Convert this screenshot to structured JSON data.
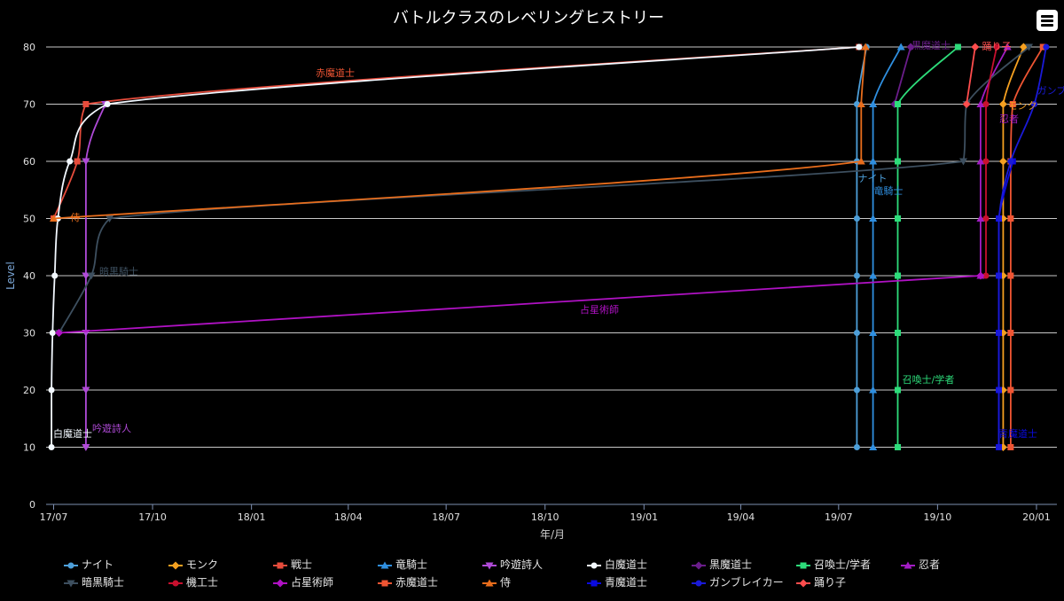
{
  "chart_data": {
    "type": "line",
    "title": "バトルクラスのレベリングヒストリー",
    "xlabel": "年/月",
    "ylabel": "Level",
    "ylim": [
      0,
      80
    ],
    "xlim": [
      "2017-06-24",
      "2020-01-20"
    ],
    "yticks": [
      "0",
      "10",
      "20",
      "30",
      "40",
      "50",
      "60",
      "70",
      "80"
    ],
    "xticks": [
      {
        "label": "17/07",
        "date": "2017-07-01"
      },
      {
        "label": "17/10",
        "date": "2017-10-01"
      },
      {
        "label": "18/01",
        "date": "2018-01-01"
      },
      {
        "label": "18/04",
        "date": "2018-04-01"
      },
      {
        "label": "18/07",
        "date": "2018-07-01"
      },
      {
        "label": "18/10",
        "date": "2018-10-01"
      },
      {
        "label": "19/01",
        "date": "2019-01-01"
      },
      {
        "label": "19/04",
        "date": "2019-04-01"
      },
      {
        "label": "19/07",
        "date": "2019-07-01"
      },
      {
        "label": "19/10",
        "date": "2019-10-01"
      },
      {
        "label": "20/01",
        "date": "2020-01-01"
      }
    ],
    "grid": true,
    "legend_position": "bottom",
    "series": [
      {
        "name": "ナイト",
        "color": "#4d9fd9",
        "marker": "circle",
        "label": "ナイト",
        "points": [
          [
            "2019-07-18",
            10
          ],
          [
            "2019-07-18",
            20
          ],
          [
            "2019-07-18",
            30
          ],
          [
            "2019-07-18",
            40
          ],
          [
            "2019-07-18",
            50
          ],
          [
            "2019-07-18",
            60
          ],
          [
            "2019-07-18",
            70
          ],
          [
            "2019-07-27",
            80
          ]
        ]
      },
      {
        "name": "モンク",
        "color": "#f5a020",
        "marker": "diamond",
        "label": "モンク",
        "points": [
          [
            "2019-12-01",
            10
          ],
          [
            "2019-12-01",
            20
          ],
          [
            "2019-12-01",
            30
          ],
          [
            "2019-12-01",
            40
          ],
          [
            "2019-12-01",
            50
          ],
          [
            "2019-12-01",
            60
          ],
          [
            "2019-12-01",
            70
          ],
          [
            "2019-12-20",
            80
          ]
        ]
      },
      {
        "name": "戦士",
        "color": "#e64c3c",
        "marker": "square",
        "label": "戦士",
        "points": [
          [
            "2017-07-01",
            50
          ],
          [
            "2017-07-23",
            60
          ],
          [
            "2017-07-31",
            70
          ],
          [
            "2019-07-20",
            80
          ]
        ]
      },
      {
        "name": "竜騎士",
        "color": "#2f8fe0",
        "marker": "triangle-up",
        "label": "竜騎士",
        "points": [
          [
            "2019-08-02",
            10
          ],
          [
            "2019-08-02",
            20
          ],
          [
            "2019-08-02",
            30
          ],
          [
            "2019-08-02",
            40
          ],
          [
            "2019-08-02",
            50
          ],
          [
            "2019-08-02",
            60
          ],
          [
            "2019-08-02",
            70
          ],
          [
            "2019-08-28",
            80
          ]
        ]
      },
      {
        "name": "吟遊詩人",
        "color": "#b04ad8",
        "marker": "triangle-down",
        "label": "吟遊詩人",
        "points": [
          [
            "2017-07-31",
            10
          ],
          [
            "2017-07-31",
            20
          ],
          [
            "2017-07-31",
            30
          ],
          [
            "2017-07-31",
            40
          ],
          [
            "2017-07-31",
            60
          ],
          [
            "2017-08-18",
            70
          ]
        ]
      },
      {
        "name": "白魔道士",
        "color": "#f2f8ff",
        "marker": "circle",
        "label": "白魔道士",
        "points": [
          [
            "2017-06-29",
            10
          ],
          [
            "2017-06-29",
            20
          ],
          [
            "2017-06-30",
            30
          ],
          [
            "2017-07-02",
            40
          ],
          [
            "2017-07-05",
            50
          ],
          [
            "2017-07-16",
            60
          ],
          [
            "2017-08-20",
            70
          ],
          [
            "2019-07-20",
            80
          ]
        ]
      },
      {
        "name": "黒魔道士",
        "color": "#6a1d8a",
        "marker": "diamond",
        "label": "黒魔道士",
        "points": [
          [
            "2019-08-22",
            70
          ],
          [
            "2019-09-06",
            80
          ]
        ]
      },
      {
        "name": "召喚士/学者",
        "color": "#2ddc7a",
        "marker": "square",
        "label": "召喚士/学者",
        "points": [
          [
            "2019-08-25",
            10
          ],
          [
            "2019-08-25",
            20
          ],
          [
            "2019-08-25",
            30
          ],
          [
            "2019-08-25",
            40
          ],
          [
            "2019-08-25",
            50
          ],
          [
            "2019-08-25",
            60
          ],
          [
            "2019-08-25",
            70
          ],
          [
            "2019-10-20",
            80
          ]
        ]
      },
      {
        "name": "忍者",
        "color": "#a21cc4",
        "marker": "triangle-up",
        "label": "忍者",
        "points": [
          [
            "2019-11-10",
            40
          ],
          [
            "2019-11-10",
            50
          ],
          [
            "2019-11-10",
            60
          ],
          [
            "2019-11-10",
            70
          ],
          [
            "2019-12-05",
            80
          ]
        ]
      },
      {
        "name": "暗黒騎士",
        "color": "#3d4f5f",
        "marker": "triangle-down",
        "label": "暗黒騎士",
        "points": [
          [
            "2017-07-06",
            30
          ],
          [
            "2017-08-05",
            40
          ],
          [
            "2017-08-22",
            50
          ],
          [
            "2019-10-25",
            60
          ],
          [
            "2019-10-28",
            70
          ],
          [
            "2019-12-25",
            80
          ]
        ]
      },
      {
        "name": "機工士",
        "color": "#c8102e",
        "marker": "circle",
        "label": "",
        "points": [
          [
            "2019-11-15",
            40
          ],
          [
            "2019-11-15",
            50
          ],
          [
            "2019-11-15",
            60
          ],
          [
            "2019-11-15",
            70
          ],
          [
            "2019-11-25",
            80
          ]
        ]
      },
      {
        "name": "占星術師",
        "color": "#b012c4",
        "marker": "diamond",
        "label": "占星術師",
        "points": [
          [
            "2017-07-06",
            30
          ],
          [
            "2019-11-10",
            40
          ]
        ]
      },
      {
        "name": "赤魔道士",
        "color": "#ef5533",
        "marker": "square",
        "label": "赤魔道士",
        "points": [
          [
            "2019-12-08",
            10
          ],
          [
            "2019-12-08",
            20
          ],
          [
            "2019-12-08",
            30
          ],
          [
            "2019-12-08",
            40
          ],
          [
            "2019-12-08",
            50
          ],
          [
            "2019-12-08",
            60
          ],
          [
            "2019-12-10",
            70
          ],
          [
            "2020-01-07",
            80
          ]
        ]
      },
      {
        "name": "侍",
        "color": "#e86d1c",
        "marker": "triangle-up",
        "label": "侍",
        "points": [
          [
            "2017-07-01",
            50
          ],
          [
            "2019-07-22",
            60
          ],
          [
            "2019-07-22",
            70
          ],
          [
            "2019-07-26",
            80
          ]
        ]
      },
      {
        "name": "青魔道士",
        "color": "#0a0ae0",
        "marker": "square",
        "label": "青魔道士",
        "points": [
          [
            "2019-11-27",
            10
          ],
          [
            "2019-11-27",
            20
          ],
          [
            "2019-11-27",
            30
          ],
          [
            "2019-11-27",
            40
          ],
          [
            "2019-11-27",
            50
          ],
          [
            "2019-12-10",
            60
          ]
        ]
      },
      {
        "name": "ガンブレイカー",
        "color": "#1a1ad8",
        "marker": "circle",
        "label": "ガンブ",
        "points": [
          [
            "2019-11-27",
            10
          ],
          [
            "2019-11-27",
            20
          ],
          [
            "2019-11-27",
            30
          ],
          [
            "2019-11-27",
            40
          ],
          [
            "2019-11-27",
            50
          ],
          [
            "2019-12-08",
            60
          ],
          [
            "2019-12-30",
            70
          ],
          [
            "2020-01-10",
            80
          ]
        ]
      },
      {
        "name": "踊り子",
        "color": "#ff4d4d",
        "marker": "diamond",
        "label": "踊り子",
        "points": [
          [
            "2019-10-28",
            70
          ],
          [
            "2019-11-05",
            80
          ]
        ]
      }
    ]
  }
}
